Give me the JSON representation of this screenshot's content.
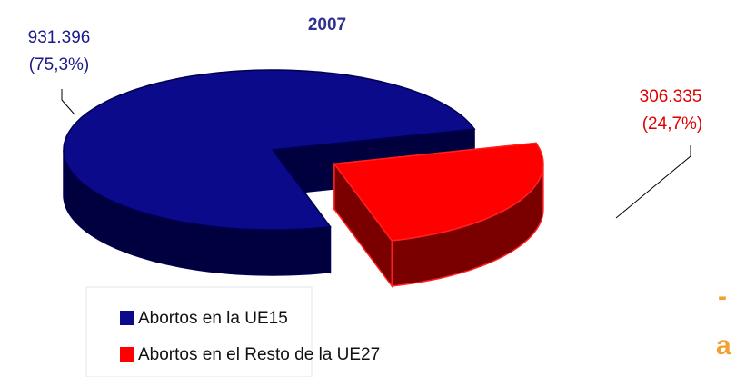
{
  "chart_data": {
    "type": "pie",
    "title": "2007",
    "categories": [
      "Abortos en la UE15",
      "Abortos en el Resto de la UE27"
    ],
    "values": [
      931396,
      306335
    ],
    "value_labels": [
      "931.396",
      "306.335"
    ],
    "percent_labels": [
      "(75,3%)",
      "(24,7%)"
    ],
    "colors": [
      "#0a0a8a",
      "#ff0000"
    ],
    "side_colors": [
      "#00003f",
      "#7a0000"
    ],
    "exploded": [
      false,
      true
    ],
    "legend": "bottom-left",
    "annotations": [
      "-",
      "a"
    ]
  }
}
